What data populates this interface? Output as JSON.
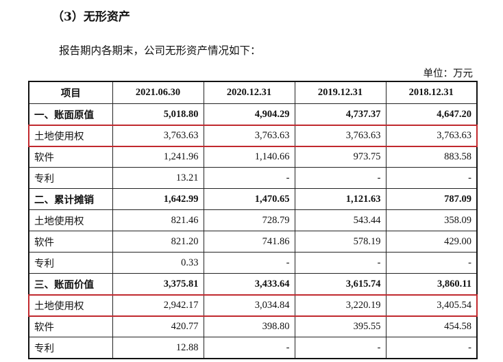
{
  "title": "（3）无形资产",
  "paragraph": "报告期内各期末，公司无形资产情况如下：",
  "unit": "单位：万元",
  "table": {
    "headers": [
      "项目",
      "2021.06.30",
      "2020.12.31",
      "2019.12.31",
      "2018.12.31"
    ],
    "rows": [
      {
        "label": "一、账面原值",
        "values": [
          "5,018.80",
          "4,904.29",
          "4,737.37",
          "4,647.20"
        ],
        "bold": true,
        "highlight": false
      },
      {
        "label": "土地使用权",
        "values": [
          "3,763.63",
          "3,763.63",
          "3,763.63",
          "3,763.63"
        ],
        "bold": false,
        "highlight": true
      },
      {
        "label": "软件",
        "values": [
          "1,241.96",
          "1,140.66",
          "973.75",
          "883.58"
        ],
        "bold": false,
        "highlight": false
      },
      {
        "label": "专利",
        "values": [
          "13.21",
          "-",
          "-",
          "-"
        ],
        "bold": false,
        "highlight": false
      },
      {
        "label": "二、累计摊销",
        "values": [
          "1,642.99",
          "1,470.65",
          "1,121.63",
          "787.09"
        ],
        "bold": true,
        "highlight": false
      },
      {
        "label": "土地使用权",
        "values": [
          "821.46",
          "728.79",
          "543.44",
          "358.09"
        ],
        "bold": false,
        "highlight": false
      },
      {
        "label": "软件",
        "values": [
          "821.20",
          "741.86",
          "578.19",
          "429.00"
        ],
        "bold": false,
        "highlight": false
      },
      {
        "label": "专利",
        "values": [
          "0.33",
          "-",
          "-",
          "-"
        ],
        "bold": false,
        "highlight": false
      },
      {
        "label": "三、账面价值",
        "values": [
          "3,375.81",
          "3,433.64",
          "3,615.74",
          "3,860.11"
        ],
        "bold": true,
        "highlight": false
      },
      {
        "label": "土地使用权",
        "values": [
          "2,942.17",
          "3,034.84",
          "3,220.19",
          "3,405.54"
        ],
        "bold": false,
        "highlight": true
      },
      {
        "label": "软件",
        "values": [
          "420.77",
          "398.80",
          "395.55",
          "454.58"
        ],
        "bold": false,
        "highlight": false
      },
      {
        "label": "专利",
        "values": [
          "12.88",
          "-",
          "-",
          "-"
        ],
        "bold": false,
        "highlight": false
      }
    ]
  },
  "colors": {
    "highlight": "#c0282d"
  }
}
